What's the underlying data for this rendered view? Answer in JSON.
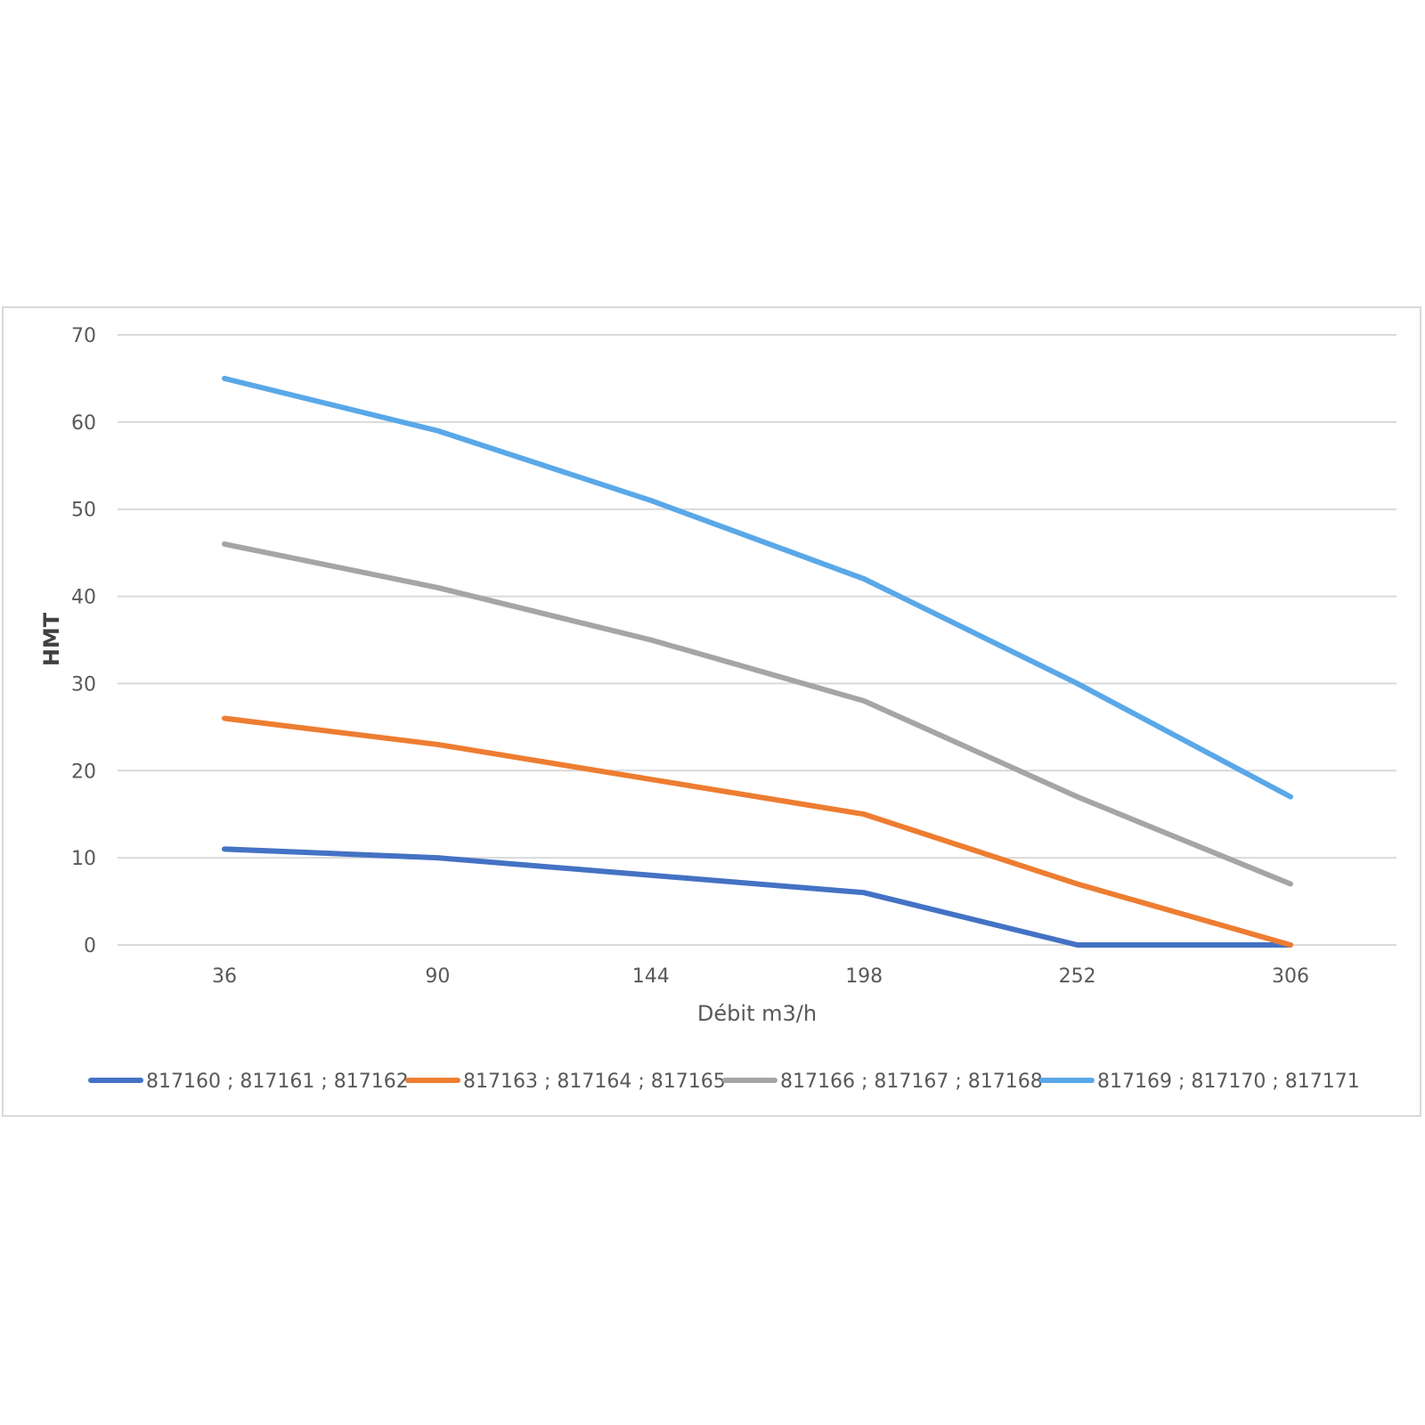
{
  "chart_data": {
    "type": "line",
    "title": "",
    "xlabel": "Débit m3/h",
    "ylabel": "HMT",
    "categories": [
      "36",
      "90",
      "144",
      "198",
      "252",
      "306"
    ],
    "ylim": [
      0,
      70
    ],
    "yticks": [
      "0",
      "10",
      "20",
      "30",
      "40",
      "50",
      "60",
      "70"
    ],
    "grid": true,
    "legend_position": "bottom",
    "series": [
      {
        "name": "817160 ; 817161 ; 817162",
        "color": "#4472c4",
        "values": [
          11,
          10,
          8,
          6,
          0,
          0
        ]
      },
      {
        "name": "817163 ; 817164 ; 817165",
        "color": "#ed7d31",
        "values": [
          26,
          23,
          19,
          15,
          7,
          0
        ]
      },
      {
        "name": "817166 ; 817167 ; 817168",
        "color": "#a5a5a5",
        "values": [
          46,
          41,
          35,
          28,
          17,
          7
        ]
      },
      {
        "name": "817169 ; 817170 ; 817171",
        "color": "#5aa8e8",
        "values": [
          65,
          59,
          51,
          42,
          30,
          17
        ]
      }
    ]
  }
}
